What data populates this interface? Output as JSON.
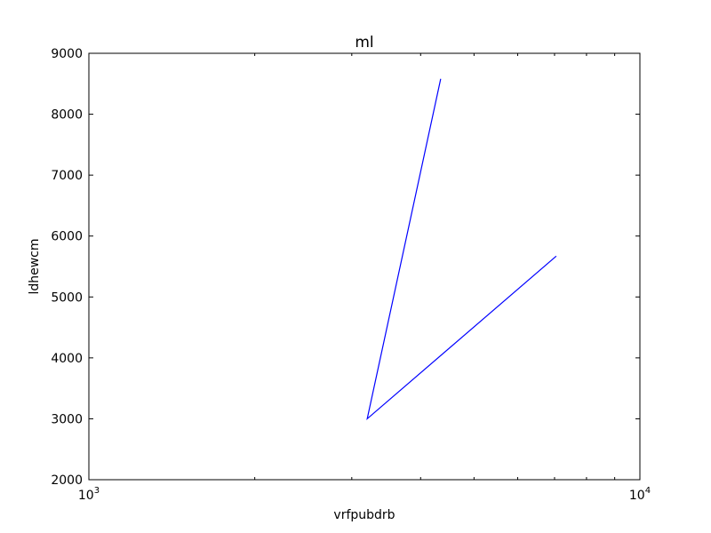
{
  "chart_data": {
    "type": "line",
    "title": "ml",
    "xlabel": "vrfpubdrb",
    "ylabel": "ldhewcm",
    "xscale": "log",
    "xlim": [
      1000,
      10000
    ],
    "ylim": [
      2000,
      9000
    ],
    "grid": false,
    "color": "#0000ff",
    "x_major_ticks": [
      {
        "value": 1000,
        "base": "10",
        "exp": "3"
      },
      {
        "value": 10000,
        "base": "10",
        "exp": "4"
      }
    ],
    "x_minor_ticks": [
      2000,
      3000,
      4000,
      5000,
      6000,
      7000,
      8000,
      9000
    ],
    "y_ticks": [
      2000,
      3000,
      4000,
      5000,
      6000,
      7000,
      8000,
      9000
    ],
    "y_tick_labels": [
      "2000",
      "3000",
      "4000",
      "5000",
      "6000",
      "7000",
      "8000",
      "9000"
    ],
    "series": [
      {
        "x": [
          4350,
          3200,
          7050
        ],
        "y": [
          8580,
          3000,
          5670
        ]
      }
    ]
  }
}
